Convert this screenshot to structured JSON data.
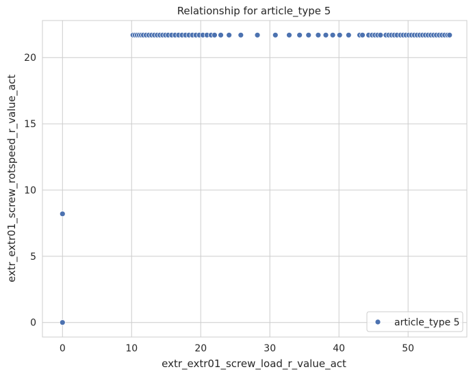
{
  "chart_data": {
    "type": "scatter",
    "title": "Relationship for article_type 5",
    "xlabel": "extr_extr01_screw_load_r_value_act",
    "ylabel": "extr_extr01_screw_rotspeed_r_value_act",
    "xlim": [
      -2.9,
      58.5
    ],
    "ylim": [
      -1.1,
      22.8
    ],
    "xticks": [
      0,
      10,
      20,
      30,
      40,
      50
    ],
    "yticks": [
      0,
      5,
      10,
      15,
      20
    ],
    "grid": true,
    "legend_position": "lower-right",
    "series": [
      {
        "name": "article_type 5",
        "color": "#4c72b0",
        "points": [
          {
            "x": 0.0,
            "y": 0.0
          },
          {
            "x": 0.0,
            "y": 8.2
          },
          {
            "x": 10.2,
            "y": 21.7
          },
          {
            "x": 10.5,
            "y": 21.7
          },
          {
            "x": 10.8,
            "y": 21.7
          },
          {
            "x": 11.1,
            "y": 21.7
          },
          {
            "x": 11.4,
            "y": 21.7
          },
          {
            "x": 11.7,
            "y": 21.7
          },
          {
            "x": 12.1,
            "y": 21.7
          },
          {
            "x": 12.5,
            "y": 21.7
          },
          {
            "x": 12.9,
            "y": 21.7
          },
          {
            "x": 13.3,
            "y": 21.7
          },
          {
            "x": 13.7,
            "y": 21.7
          },
          {
            "x": 14.1,
            "y": 21.7
          },
          {
            "x": 14.5,
            "y": 21.7
          },
          {
            "x": 14.9,
            "y": 21.7
          },
          {
            "x": 15.3,
            "y": 21.7
          },
          {
            "x": 15.8,
            "y": 21.7
          },
          {
            "x": 16.3,
            "y": 21.7
          },
          {
            "x": 16.8,
            "y": 21.7
          },
          {
            "x": 17.3,
            "y": 21.7
          },
          {
            "x": 17.8,
            "y": 21.7
          },
          {
            "x": 18.3,
            "y": 21.7
          },
          {
            "x": 18.8,
            "y": 21.7
          },
          {
            "x": 19.3,
            "y": 21.7
          },
          {
            "x": 19.8,
            "y": 21.7
          },
          {
            "x": 20.3,
            "y": 21.7
          },
          {
            "x": 20.9,
            "y": 21.7
          },
          {
            "x": 21.5,
            "y": 21.7
          },
          {
            "x": 22.0,
            "y": 21.7
          },
          {
            "x": 22.9,
            "y": 21.7
          },
          {
            "x": 24.1,
            "y": 21.7
          },
          {
            "x": 25.8,
            "y": 21.7
          },
          {
            "x": 28.2,
            "y": 21.7
          },
          {
            "x": 30.8,
            "y": 21.7
          },
          {
            "x": 32.8,
            "y": 21.7
          },
          {
            "x": 34.3,
            "y": 21.7
          },
          {
            "x": 35.6,
            "y": 21.7
          },
          {
            "x": 37.0,
            "y": 21.7
          },
          {
            "x": 38.1,
            "y": 21.7
          },
          {
            "x": 39.1,
            "y": 21.7
          },
          {
            "x": 40.1,
            "y": 21.7
          },
          {
            "x": 41.4,
            "y": 21.7
          },
          {
            "x": 43.0,
            "y": 21.7
          },
          {
            "x": 43.4,
            "y": 21.7
          },
          {
            "x": 44.3,
            "y": 21.7
          },
          {
            "x": 44.8,
            "y": 21.7
          },
          {
            "x": 45.2,
            "y": 21.7
          },
          {
            "x": 45.6,
            "y": 21.7
          },
          {
            "x": 46.0,
            "y": 21.7
          },
          {
            "x": 46.8,
            "y": 21.7
          },
          {
            "x": 47.2,
            "y": 21.7
          },
          {
            "x": 47.6,
            "y": 21.7
          },
          {
            "x": 48.0,
            "y": 21.7
          },
          {
            "x": 48.4,
            "y": 21.7
          },
          {
            "x": 48.9,
            "y": 21.7
          },
          {
            "x": 49.3,
            "y": 21.7
          },
          {
            "x": 49.7,
            "y": 21.7
          },
          {
            "x": 50.1,
            "y": 21.7
          },
          {
            "x": 50.5,
            "y": 21.7
          },
          {
            "x": 50.9,
            "y": 21.7
          },
          {
            "x": 51.3,
            "y": 21.7
          },
          {
            "x": 51.7,
            "y": 21.7
          },
          {
            "x": 52.1,
            "y": 21.7
          },
          {
            "x": 52.5,
            "y": 21.7
          },
          {
            "x": 52.9,
            "y": 21.7
          },
          {
            "x": 53.3,
            "y": 21.7
          },
          {
            "x": 53.7,
            "y": 21.7
          },
          {
            "x": 54.1,
            "y": 21.7
          },
          {
            "x": 54.5,
            "y": 21.7
          },
          {
            "x": 54.9,
            "y": 21.7
          },
          {
            "x": 55.3,
            "y": 21.7
          },
          {
            "x": 55.7,
            "y": 21.7
          },
          {
            "x": 56.0,
            "y": 21.7
          }
        ]
      }
    ]
  }
}
